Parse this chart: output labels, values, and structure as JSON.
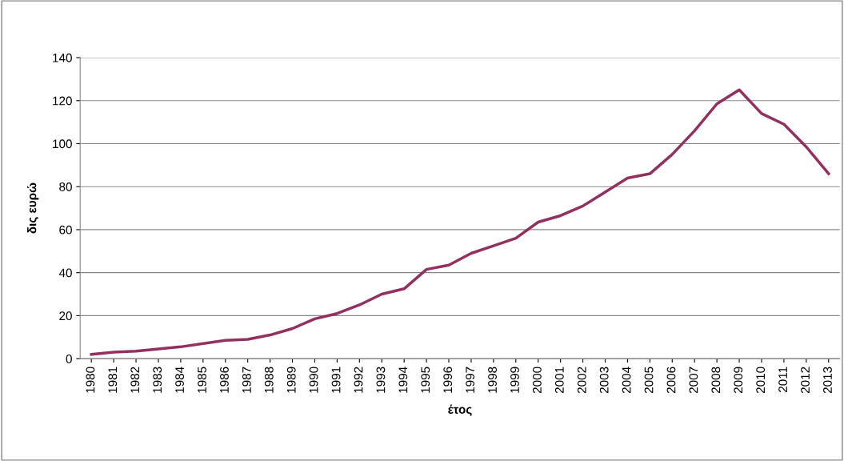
{
  "chart_data": {
    "type": "line",
    "xlabel": "έτος",
    "ylabel": "δις ευρώ",
    "categories": [
      "1980",
      "1981",
      "1982",
      "1983",
      "1984",
      "1985",
      "1986",
      "1987",
      "1988",
      "1989",
      "1990",
      "1991",
      "1992",
      "1993",
      "1994",
      "1995",
      "1996",
      "1997",
      "1998",
      "1999",
      "2000",
      "2001",
      "2002",
      "2003",
      "2004",
      "2005",
      "2006",
      "2007",
      "2008",
      "2009",
      "2010",
      "2011",
      "2012",
      "2013"
    ],
    "series": [
      {
        "color": "#93305f",
        "values": [
          2,
          3,
          3.5,
          4.5,
          5.5,
          7,
          8.5,
          9,
          11,
          14,
          18.5,
          21,
          25,
          30,
          32.5,
          41.5,
          43.5,
          49,
          52.5,
          56,
          63.5,
          66.5,
          71,
          77.5,
          84,
          86,
          95,
          106,
          118.5,
          125,
          114,
          109,
          98.5,
          86
        ]
      }
    ],
    "ylim": [
      0,
      140
    ],
    "yticks": [
      0,
      20,
      40,
      60,
      80,
      100,
      120,
      140
    ],
    "grid": "y",
    "marker": "none",
    "line_style": "solid"
  }
}
